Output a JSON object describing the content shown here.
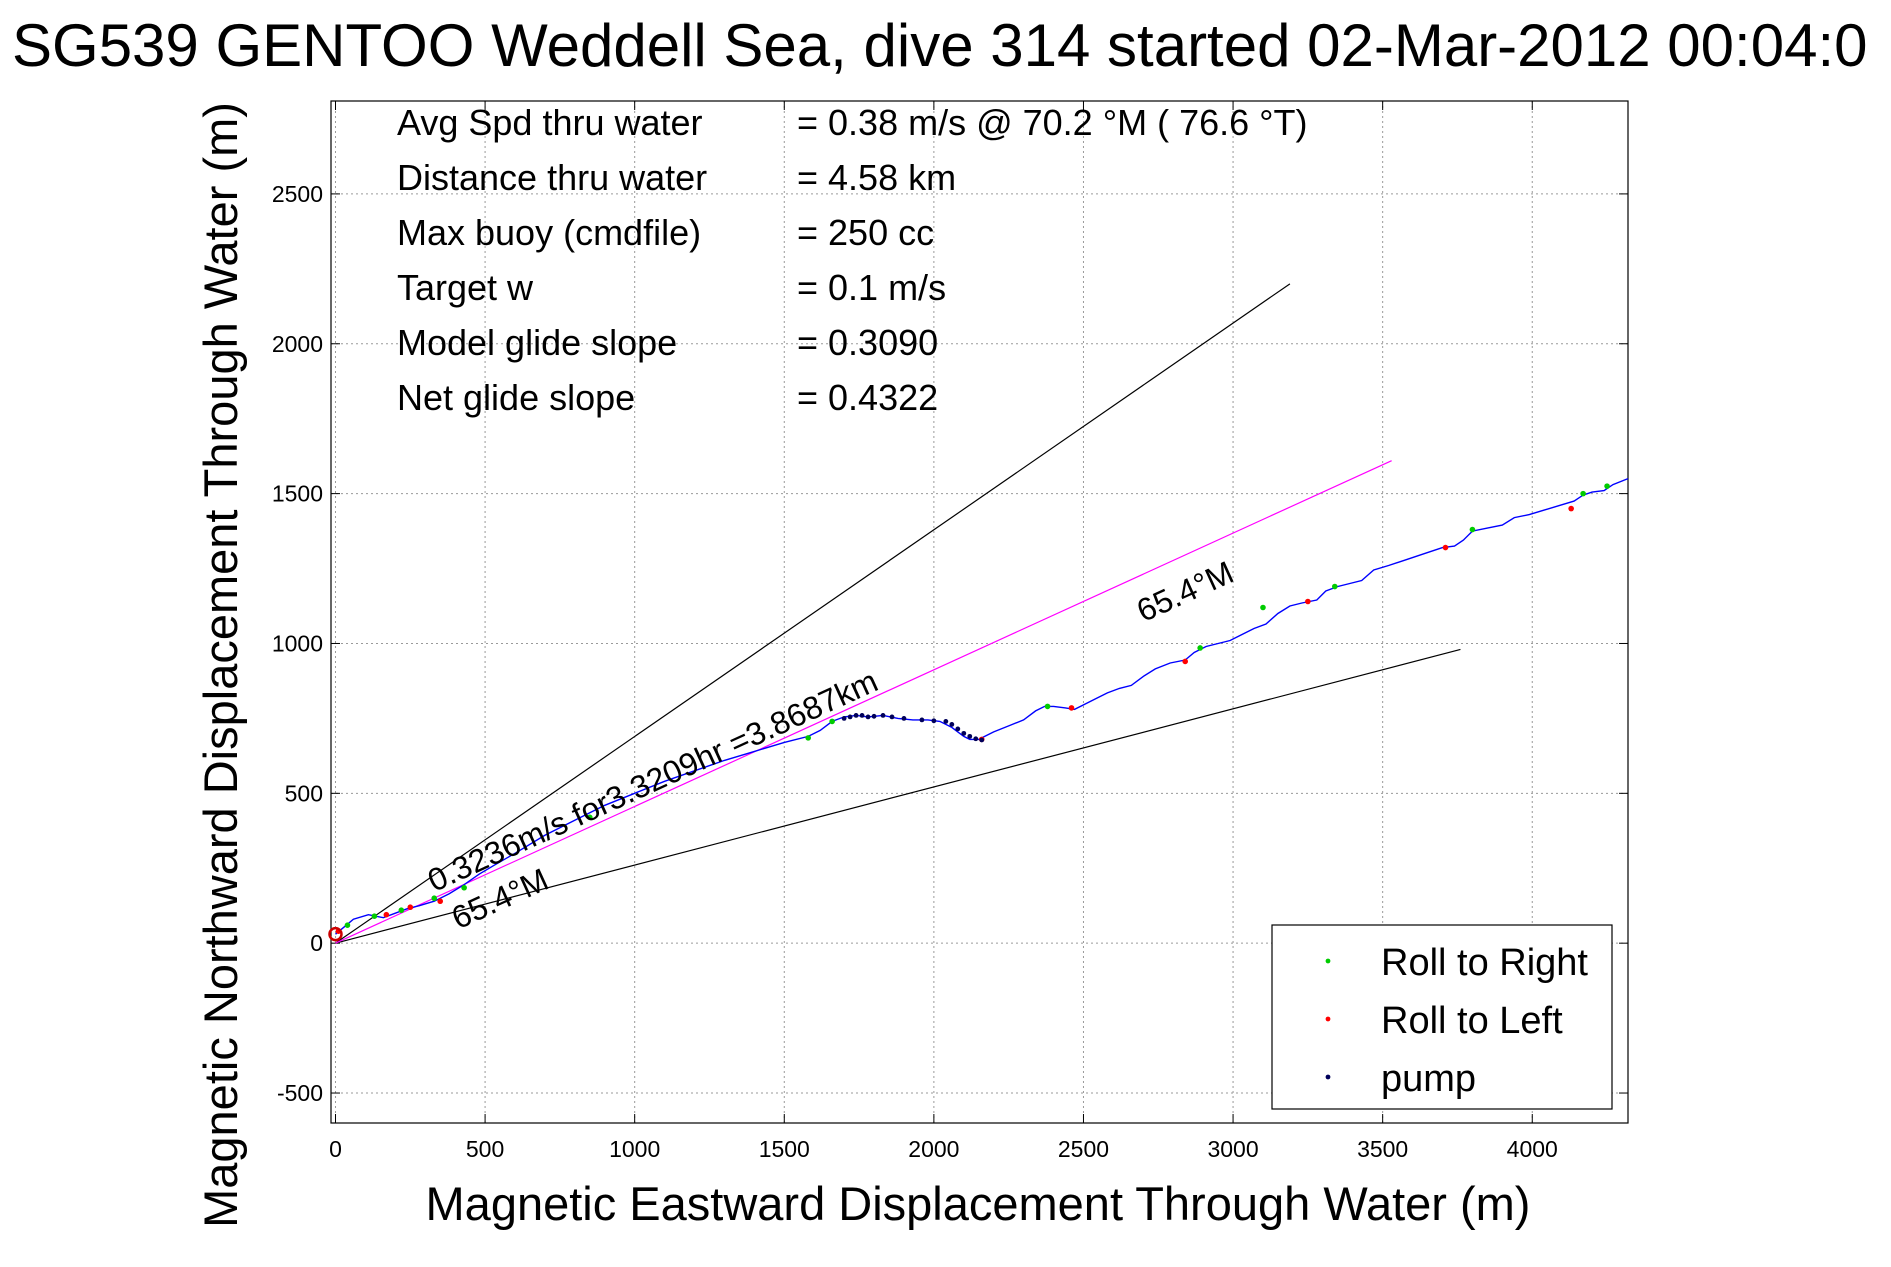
{
  "chart_data": {
    "type": "line",
    "title": "SG539 GENTOO Weddell Sea, dive 314 started 02-Mar-2012 00:04:0",
    "xlabel": "Magnetic Eastward Displacement Through Water (m)",
    "ylabel": "Magnetic Northward Displacement Through Water (m)",
    "xlim": [
      -15,
      4320
    ],
    "ylim": [
      -600,
      2810
    ],
    "xticks": [
      0,
      500,
      1000,
      1500,
      2000,
      2500,
      3000,
      3500,
      4000
    ],
    "yticks": [
      -500,
      0,
      500,
      1000,
      1500,
      2000,
      2500
    ],
    "grid": true,
    "stats": [
      {
        "label": "Avg Spd thru water",
        "value": "=  0.38 m/s @  70.2 °M ( 76.6 °T)"
      },
      {
        "label": "Distance thru water",
        "value": "=  4.58 km"
      },
      {
        "label": "Max buoy (cmdfile)",
        "value": "= 250 cc"
      },
      {
        "label": "Target w",
        "value": "= 0.1 m/s"
      },
      {
        "label": "Model glide slope",
        "value": "= 0.3090"
      },
      {
        "label": "Net glide slope",
        "value": "= 0.4322"
      }
    ],
    "reference_lines": [
      {
        "name": "upper bound",
        "color": "#000000",
        "x": [
          0,
          3190
        ],
        "y": [
          0,
          2200
        ]
      },
      {
        "name": "lower bound",
        "color": "#000000",
        "x": [
          0,
          3760
        ],
        "y": [
          0,
          980
        ]
      },
      {
        "name": "heading",
        "color": "#ff00ff",
        "x": [
          0,
          3530
        ],
        "y": [
          0,
          1610
        ]
      }
    ],
    "annotations": [
      {
        "text": "0.3236m/s for3.3209hr =3.8687km",
        "x": 330,
        "y": 170,
        "angle": 24.5
      },
      {
        "text": "65.4°M",
        "x": 410,
        "y": 45,
        "angle": 24.5
      },
      {
        "text": "65.4°M",
        "x": 2700,
        "y": 1070,
        "angle": 24.5
      }
    ],
    "series": [
      {
        "name": "track",
        "color": "#0000ff",
        "x": [
          0,
          30,
          60,
          110,
          160,
          200,
          240,
          280,
          330,
          380,
          430,
          480,
          530,
          600,
          700,
          800,
          900,
          1000,
          1100,
          1200,
          1300,
          1400,
          1500,
          1580,
          1620,
          1660,
          1700,
          1740,
          1780,
          1830,
          1880,
          1930,
          1980,
          2020,
          2060,
          2080,
          2100,
          2120,
          2150,
          2170,
          2200,
          2250,
          2300,
          2340,
          2370,
          2400,
          2440,
          2470,
          2500,
          2540,
          2580,
          2620,
          2660,
          2700,
          2740,
          2790,
          2840,
          2870,
          2910,
          2950,
          2990,
          3030,
          3070,
          3110,
          3150,
          3190,
          3230,
          3280,
          3310,
          3350,
          3390,
          3430,
          3470,
          3520,
          3580,
          3640,
          3700,
          3740,
          3770,
          3800,
          3850,
          3900,
          3940,
          3990,
          4040,
          4090,
          4140,
          4170,
          4200,
          4240,
          4270,
          4320
        ],
        "y": [
          30,
          55,
          80,
          95,
          85,
          100,
          115,
          125,
          140,
          165,
          195,
          230,
          260,
          300,
          360,
          410,
          460,
          500,
          540,
          575,
          610,
          640,
          670,
          690,
          710,
          740,
          755,
          760,
          755,
          760,
          750,
          745,
          745,
          740,
          720,
          705,
          690,
          680,
          680,
          690,
          705,
          725,
          745,
          775,
          790,
          790,
          785,
          780,
          795,
          815,
          835,
          850,
          860,
          890,
          915,
          935,
          945,
          970,
          990,
          1000,
          1010,
          1030,
          1050,
          1065,
          1100,
          1125,
          1135,
          1145,
          1175,
          1190,
          1200,
          1210,
          1245,
          1260,
          1280,
          1300,
          1320,
          1325,
          1345,
          1375,
          1385,
          1395,
          1420,
          1430,
          1445,
          1460,
          1475,
          1495,
          1505,
          1510,
          1530,
          1550
        ]
      },
      {
        "name": "Roll to Right",
        "color": "#00cc00",
        "x": [
          40,
          130,
          220,
          330,
          430,
          850,
          1580,
          1660,
          2380,
          2890,
          3100,
          3340,
          3800,
          4170,
          4250
        ],
        "y": [
          60,
          90,
          110,
          150,
          185,
          420,
          685,
          740,
          790,
          985,
          1120,
          1190,
          1380,
          1500,
          1525
        ]
      },
      {
        "name": "Roll to Left",
        "color": "#ff0000",
        "x": [
          10,
          170,
          250,
          350,
          2160,
          2460,
          2840,
          3250,
          3710,
          4130
        ],
        "y": [
          40,
          95,
          120,
          140,
          680,
          785,
          940,
          1140,
          1320,
          1450
        ]
      },
      {
        "name": "pump",
        "color": "#00005a",
        "x": [
          1700,
          1720,
          1740,
          1760,
          1780,
          1800,
          1830,
          1860,
          1900,
          1960,
          2000,
          2040,
          2060,
          2080,
          2100,
          2120,
          2140,
          2160
        ],
        "y": [
          750,
          755,
          760,
          760,
          755,
          757,
          760,
          755,
          750,
          745,
          742,
          740,
          730,
          715,
          700,
          690,
          682,
          678
        ]
      }
    ],
    "legend": {
      "placement": "bottom-right",
      "entries": [
        {
          "label": "Roll to Right",
          "color": "#00cc00"
        },
        {
          "label": "Roll to Left",
          "color": "#ff0000"
        },
        {
          "label": "pump",
          "color": "#00005a"
        }
      ]
    }
  }
}
